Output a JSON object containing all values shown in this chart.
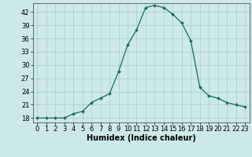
{
  "x": [
    0,
    1,
    2,
    3,
    4,
    5,
    6,
    7,
    8,
    9,
    10,
    11,
    12,
    13,
    14,
    15,
    16,
    17,
    18,
    19,
    20,
    21,
    22,
    23
  ],
  "y": [
    18,
    18,
    18,
    18,
    19,
    19.5,
    21.5,
    22.5,
    23.5,
    28.5,
    34.5,
    38,
    43,
    43.5,
    43,
    41.5,
    39.5,
    35.5,
    25,
    23,
    22.5,
    21.5,
    21,
    20.5
  ],
  "line_color": "#1a6b5a",
  "marker": "D",
  "marker_size": 2.0,
  "bg_color": "#cce8ea",
  "grid_color": "#b0cfd2",
  "xlabel": "Humidex (Indice chaleur)",
  "ylim": [
    17,
    44
  ],
  "xlim": [
    -0.5,
    23.5
  ],
  "yticks": [
    18,
    21,
    24,
    27,
    30,
    33,
    36,
    39,
    42
  ],
  "xtick_labels": [
    "0",
    "1",
    "2",
    "3",
    "4",
    "5",
    "6",
    "7",
    "8",
    "9",
    "10",
    "11",
    "12",
    "13",
    "14",
    "15",
    "16",
    "17",
    "18",
    "19",
    "20",
    "21",
    "22",
    "23"
  ],
  "tick_fontsize": 6,
  "xlabel_fontsize": 7,
  "spine_color": "#555555"
}
